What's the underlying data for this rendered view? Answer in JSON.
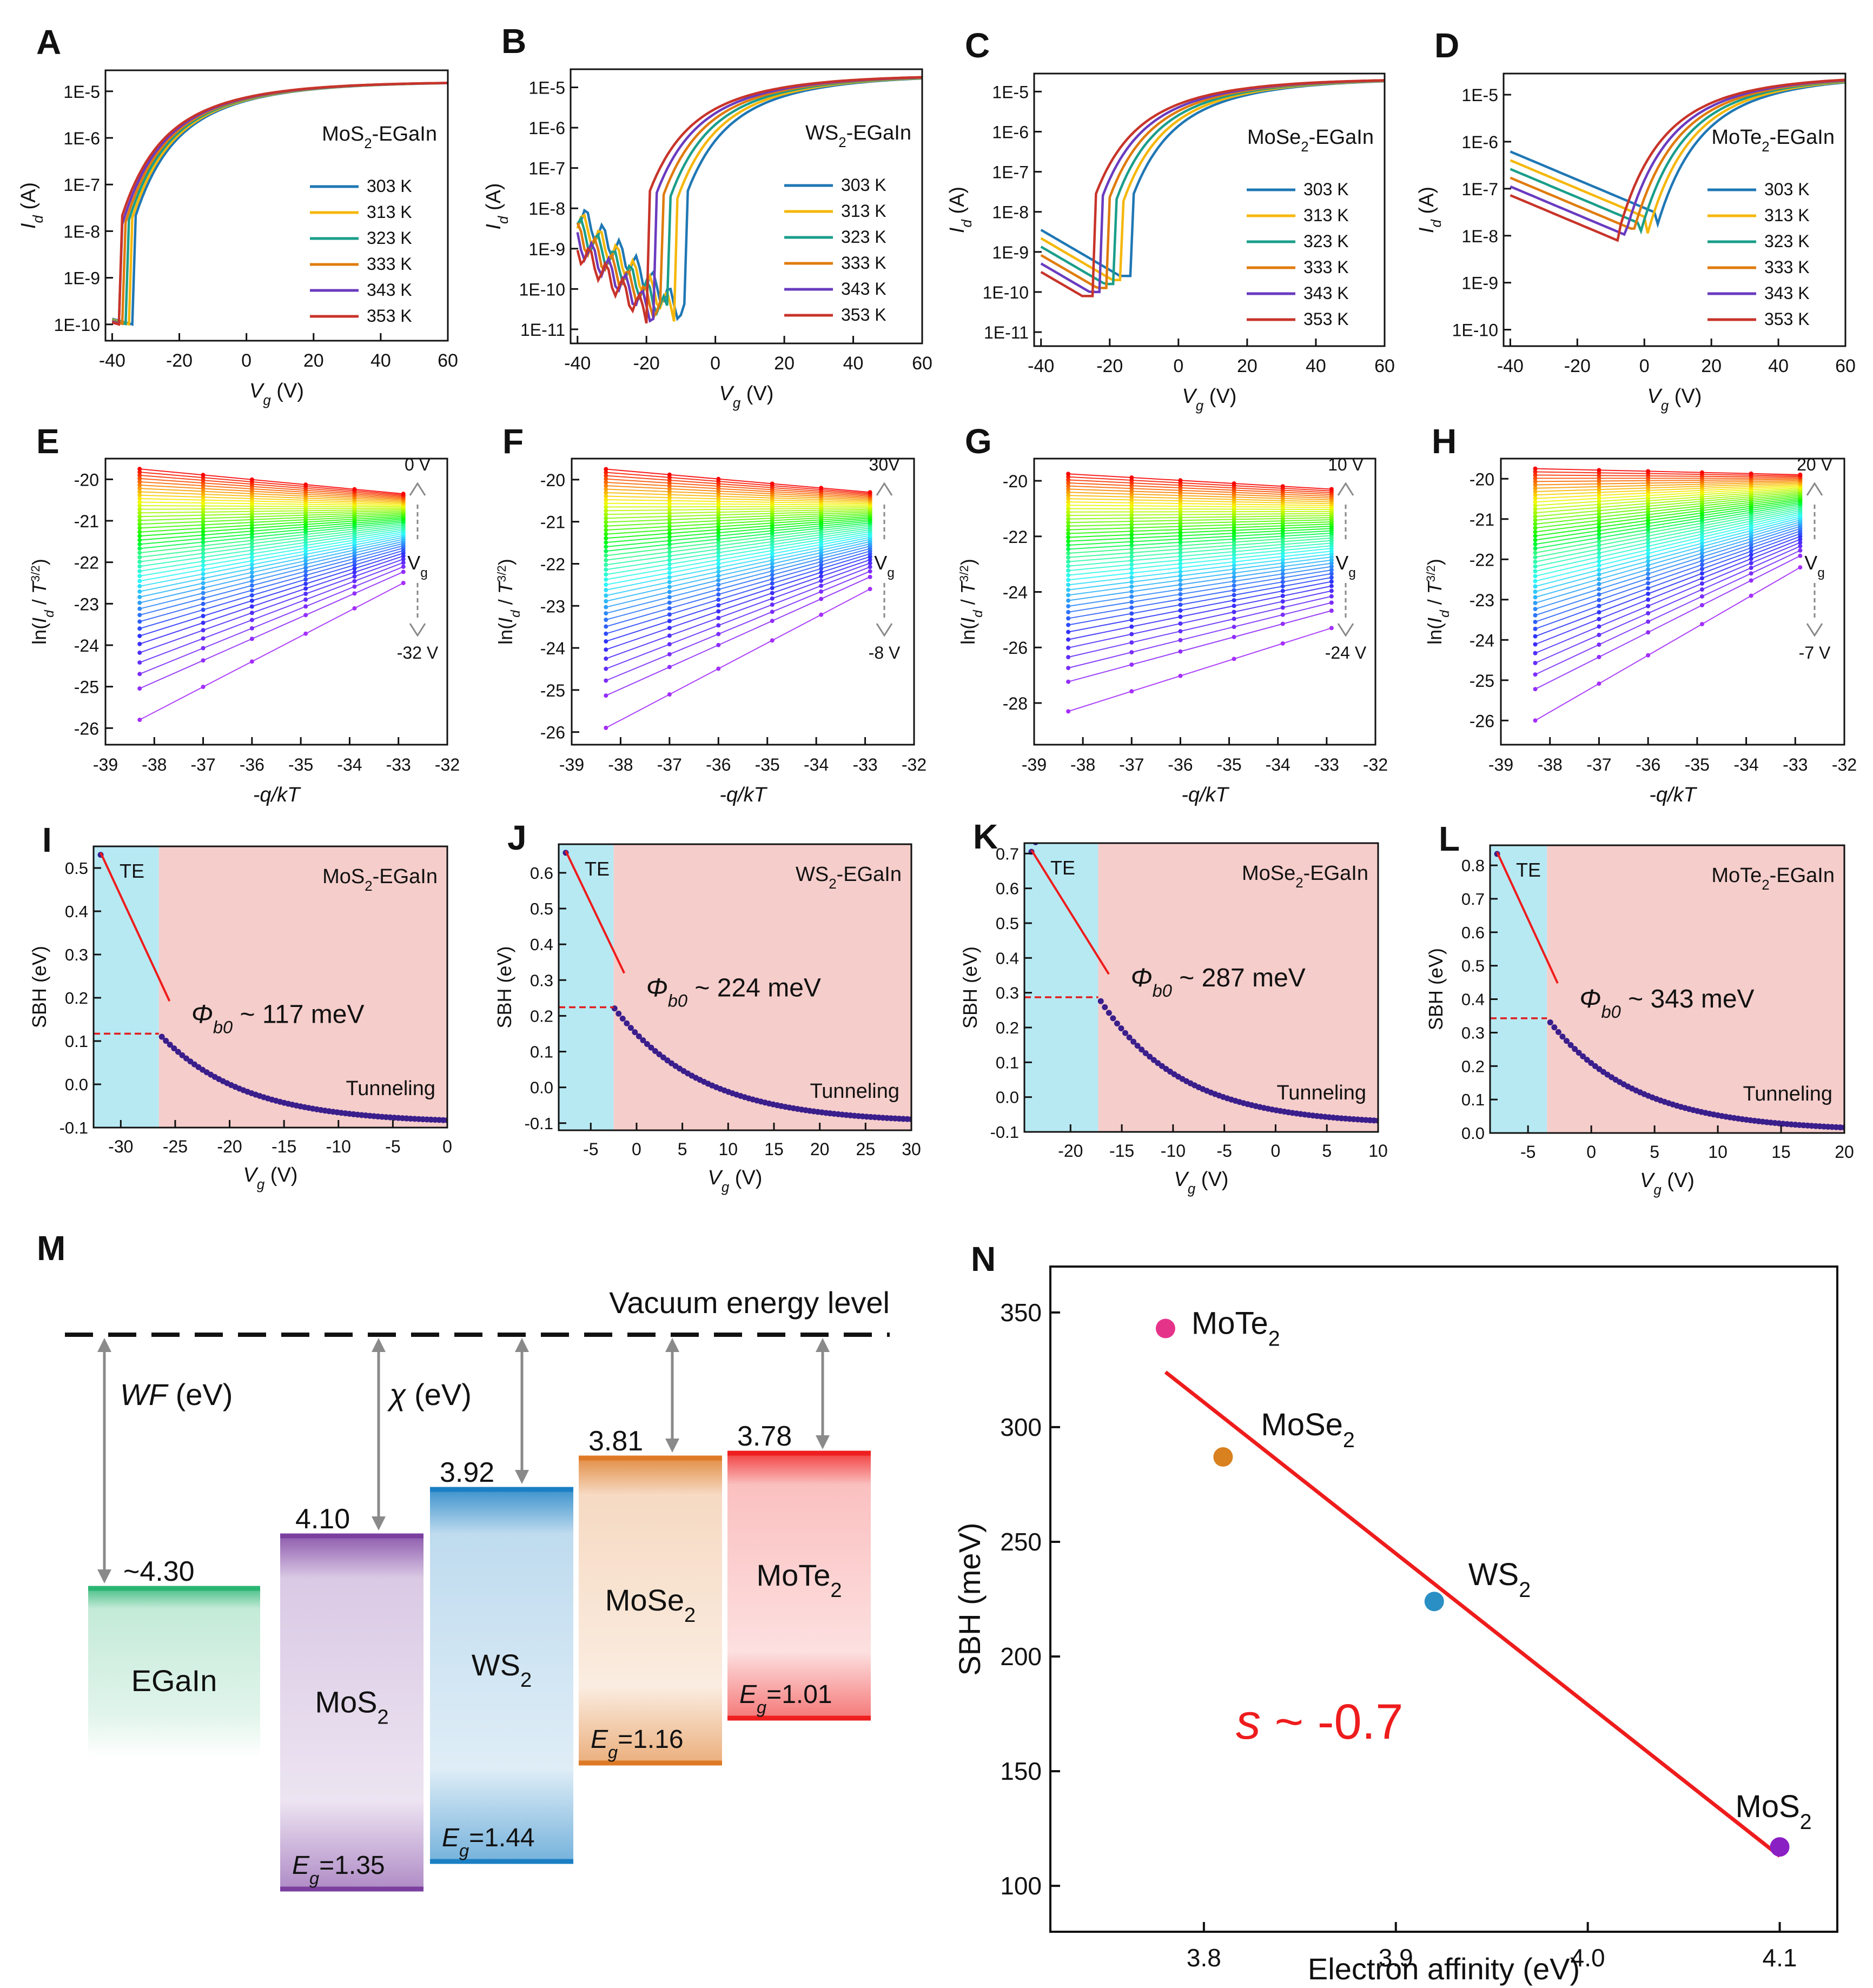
{
  "colors": {
    "temps": [
      "#1f77b4",
      "#f5b70a",
      "#1a9e8a",
      "#e07b0c",
      "#6a3bbf",
      "#c8342a"
    ],
    "dots": "#3a1e8c",
    "te_region": "#b7e9f3",
    "tunnel_region": "#f5cdca",
    "fit_line": "#ee1c1c",
    "egain": "#2bb573",
    "mos2": "#7b3fa0",
    "ws2": "#1a7fc4",
    "mose2": "#de7a26",
    "mote2": "#ef1f1f"
  },
  "top_row": {
    "ylabel": "I_d (A)",
    "xlabel": "V_g (V)",
    "legend": [
      "303 K",
      "313 K",
      "323 K",
      "333 K",
      "343 K",
      "353 K"
    ],
    "xticks": [
      "-40",
      "-20",
      "0",
      "20",
      "40",
      "60"
    ],
    "panels": [
      {
        "letter": "A",
        "title": "MoS",
        "sub": "2",
        "suffix": "-EGaIn",
        "yticks": [
          "1E-5",
          "1E-6",
          "1E-7",
          "1E-8",
          "1E-9",
          "1E-10"
        ],
        "xticks": [
          "-40",
          "-20",
          "0",
          "20",
          "40",
          "60"
        ]
      },
      {
        "letter": "B",
        "title": "WS",
        "sub": "2",
        "suffix": "-EGaIn",
        "yticks": [
          "1E-5",
          "1E-6",
          "1E-7",
          "1E-8",
          "1E-9",
          "1E-10",
          "1E-11"
        ],
        "xticks": [
          "-40",
          "-20",
          "0",
          "20",
          "40",
          "60"
        ]
      },
      {
        "letter": "C",
        "title": "MoSe",
        "sub": "2",
        "suffix": "-EGaIn",
        "yticks": [
          "1E-5",
          "1E-6",
          "1E-7",
          "1E-8",
          "1E-9",
          "1E-10",
          "1E-11"
        ],
        "xticks": [
          "-40",
          "-20",
          "0",
          "20",
          "40",
          "60"
        ]
      },
      {
        "letter": "D",
        "title": "MoTe",
        "sub": "2",
        "suffix": "-EGaIn",
        "yticks": [
          "1E-5",
          "1E-6",
          "1E-7",
          "1E-8",
          "1E-9",
          "1E-10"
        ],
        "xticks": [
          "-40",
          "-20",
          "0",
          "20",
          "40",
          "60"
        ]
      }
    ]
  },
  "mid_row": {
    "ylabel": "ln(I_d / T^3/2)",
    "xlabel": "-q/kT",
    "xticks": [
      "-39",
      "-38",
      "-37",
      "-36",
      "-35",
      "-34",
      "-33",
      "-32"
    ],
    "vg_label": "V",
    "vg_sub": "g",
    "panels": [
      {
        "letter": "E",
        "top": "0 V",
        "bottom": "-32 V",
        "yticks": [
          "-20",
          "-21",
          "-22",
          "-23",
          "-24",
          "-25",
          "-26"
        ]
      },
      {
        "letter": "F",
        "top": "30V",
        "bottom": "-8 V",
        "yticks": [
          "-20",
          "-21",
          "-22",
          "-23",
          "-24",
          "-25",
          "-26"
        ]
      },
      {
        "letter": "G",
        "top": "10 V",
        "bottom": "-24 V",
        "yticks": [
          "-20",
          "-22",
          "-24",
          "-26",
          "-28"
        ]
      },
      {
        "letter": "H",
        "top": "20 V",
        "bottom": "-7 V",
        "yticks": [
          "-20",
          "-21",
          "-22",
          "-23",
          "-24",
          "-25",
          "-26"
        ]
      }
    ]
  },
  "sbh_row": {
    "ylabel": "SBH (eV)",
    "xlabel": "V_g (V)",
    "te_label": "TE",
    "tunnel_label": "Tunneling",
    "phi_symbol": "Φ",
    "phi_sub": "b0",
    "panels": [
      {
        "letter": "I",
        "title": "MoS",
        "sub": "2",
        "suffix": "-EGaIn",
        "phi_value": "~ 117 meV",
        "xticks": [
          "-30",
          "-25",
          "-20",
          "-15",
          "-10",
          "-5",
          "0"
        ],
        "yticks": [
          "0.5",
          "0.4",
          "0.3",
          "0.2",
          "0.1",
          "0.0",
          "-0.1"
        ],
        "xrange": [
          -32.5,
          0
        ],
        "yrange": [
          -0.1,
          0.55
        ],
        "te_end": -26.5,
        "phi": 0.117
      },
      {
        "letter": "J",
        "title": "WS",
        "sub": "2",
        "suffix": "-EGaIn",
        "phi_value": "~ 224 meV",
        "xticks": [
          "-5",
          "0",
          "5",
          "10",
          "15",
          "20",
          "25",
          "30"
        ],
        "yticks": [
          "0.6",
          "0.5",
          "0.4",
          "0.3",
          "0.2",
          "0.1",
          "0.0",
          "-0.1"
        ],
        "xrange": [
          -8.5,
          30
        ],
        "yrange": [
          -0.12,
          0.68
        ],
        "te_end": -2.5,
        "phi": 0.224
      },
      {
        "letter": "K",
        "title": "MoSe",
        "sub": "2",
        "suffix": "-EGaIn",
        "phi_value": "~ 287 meV",
        "xticks": [
          "-20",
          "-15",
          "-10",
          "-5",
          "0",
          "5",
          "10"
        ],
        "yticks": [
          "0.7",
          "0.6",
          "0.5",
          "0.4",
          "0.3",
          "0.2",
          "0.1",
          "0.0",
          "-0.1"
        ],
        "xrange": [
          -24.5,
          10
        ],
        "yrange": [
          -0.1,
          0.73
        ],
        "te_end": -17.3,
        "phi": 0.287
      },
      {
        "letter": "L",
        "title": "MoTe",
        "sub": "2",
        "suffix": "-EGaIn",
        "phi_value": "~ 343 meV",
        "xticks": [
          "-5",
          "0",
          "5",
          "10",
          "15",
          "20"
        ],
        "yticks": [
          "0.8",
          "0.7",
          "0.6",
          "0.5",
          "0.4",
          "0.3",
          "0.2",
          "0.1",
          "0.0"
        ],
        "xrange": [
          -8,
          20
        ],
        "yrange": [
          0,
          0.86
        ],
        "te_end": -3.5,
        "phi": 0.343
      }
    ]
  },
  "band_diagram": {
    "letter": "M",
    "vacuum_label": "Vacuum energy level",
    "wf_label": "WF",
    "wf_unit": " (eV)",
    "chi_label": "χ",
    "chi_unit": " (eV)",
    "eg_symbol": "E",
    "eg_sub": "g",
    "materials": [
      {
        "name": "EGaIn",
        "sub": "",
        "level": "~4.30",
        "eg": ""
      },
      {
        "name": "MoS",
        "sub": "2",
        "level": "4.10",
        "eg": "=1.35"
      },
      {
        "name": "WS",
        "sub": "2",
        "level": "3.92",
        "eg": "=1.44"
      },
      {
        "name": "MoSe",
        "sub": "2",
        "level": "3.81",
        "eg": "=1.16"
      },
      {
        "name": "MoTe",
        "sub": "2",
        "level": "3.78",
        "eg": "=1.01"
      }
    ]
  },
  "chart_data": [
    {
      "panel": "N",
      "type": "scatter",
      "xlabel": "Electron affinity (eV)",
      "ylabel": "SBH (meV)",
      "xlim": [
        3.72,
        4.13
      ],
      "ylim": [
        80,
        370
      ],
      "xticks": [
        "3.8",
        "3.9",
        "4.0",
        "4.1"
      ],
      "yticks": [
        "350",
        "300",
        "250",
        "200",
        "150",
        "100"
      ],
      "points": [
        {
          "name": "MoTe",
          "sub": "2",
          "x": 3.78,
          "y": 343,
          "color": "#e6338a"
        },
        {
          "name": "MoSe",
          "sub": "2",
          "x": 3.81,
          "y": 287,
          "color": "#d9801f"
        },
        {
          "name": "WS",
          "sub": "2",
          "x": 3.92,
          "y": 224,
          "color": "#2a8fc4"
        },
        {
          "name": "MoS",
          "sub": "2",
          "x": 4.1,
          "y": 117,
          "color": "#8a1fc4"
        }
      ],
      "fit": {
        "x": [
          3.78,
          4.1
        ],
        "y": [
          324,
          113
        ]
      },
      "annotation": "s ~ -0.7"
    },
    {
      "panel": "I-L",
      "type": "scatter",
      "series": [
        {
          "name": "MoS2-EGaIn",
          "phi_b0_meV": 117
        },
        {
          "name": "WS2-EGaIn",
          "phi_b0_meV": 224
        },
        {
          "name": "MoSe2-EGaIn",
          "phi_b0_meV": 287
        },
        {
          "name": "MoTe2-EGaIn",
          "phi_b0_meV": 343
        }
      ]
    }
  ]
}
